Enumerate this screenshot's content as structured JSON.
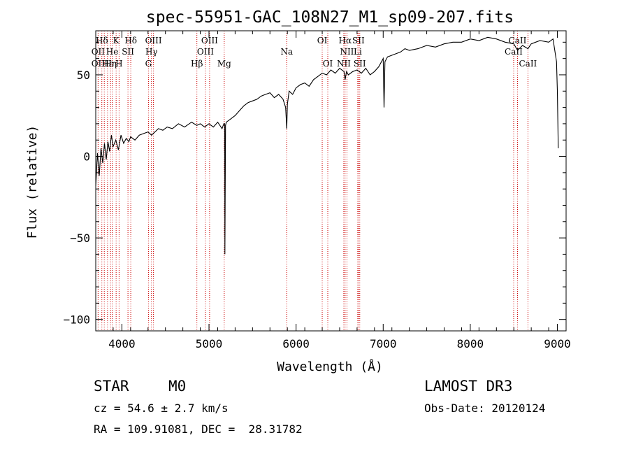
{
  "chart_data": {
    "type": "line",
    "title": "spec-55951-GAC_108N27_M1_sp09-207.fits",
    "xlabel": "Wavelength (Å)",
    "ylabel": "Flux (relative)",
    "xlim": [
      3700,
      9100
    ],
    "ylim": [
      -107,
      77
    ],
    "xticks": [
      4000,
      5000,
      6000,
      7000,
      8000,
      9000
    ],
    "yticks": [
      -100,
      -50,
      0,
      50
    ],
    "series": [
      {
        "color": "#000000",
        "x": [
          3700,
          3720,
          3740,
          3760,
          3780,
          3800,
          3820,
          3840,
          3860,
          3880,
          3900,
          3930,
          3960,
          3990,
          4020,
          4050,
          4080,
          4100,
          4150,
          4200,
          4250,
          4300,
          4340,
          4380,
          4420,
          4470,
          4520,
          4580,
          4650,
          4720,
          4800,
          4860,
          4900,
          4950,
          5000,
          5050,
          5100,
          5150,
          5170,
          5180,
          5183,
          5190,
          5200,
          5250,
          5300,
          5350,
          5400,
          5450,
          5500,
          5550,
          5600,
          5650,
          5700,
          5750,
          5800,
          5850,
          5880,
          5893,
          5900,
          5920,
          5960,
          6000,
          6050,
          6100,
          6150,
          6200,
          6250,
          6300,
          6350,
          6400,
          6450,
          6500,
          6550,
          6563,
          6580,
          6600,
          6650,
          6700,
          6750,
          6800,
          6850,
          6900,
          6950,
          7000,
          7010,
          7020,
          7050,
          7100,
          7150,
          7200,
          7250,
          7300,
          7400,
          7500,
          7600,
          7700,
          7800,
          7900,
          8000,
          8100,
          8200,
          8300,
          8400,
          8500,
          8542,
          8600,
          8662,
          8700,
          8800,
          8900,
          8950,
          8990,
          9000,
          9010
        ],
        "y": [
          -18,
          2,
          -12,
          5,
          -4,
          8,
          -2,
          9,
          3,
          13,
          6,
          10,
          4,
          13,
          8,
          11,
          9,
          12,
          10,
          13,
          14,
          15,
          13,
          15,
          17,
          16,
          18,
          17,
          20,
          18,
          21,
          19,
          20,
          18,
          20,
          18,
          21,
          17,
          20,
          20,
          -60,
          19,
          21,
          23,
          25,
          28,
          31,
          33,
          34,
          35,
          37,
          38,
          39,
          36,
          38,
          35,
          30,
          17,
          32,
          40,
          38,
          42,
          44,
          45,
          43,
          47,
          49,
          51,
          50,
          53,
          51,
          54,
          52,
          47,
          52,
          50,
          52,
          53,
          51,
          54,
          50,
          52,
          55,
          60,
          30,
          58,
          61,
          62,
          63,
          64,
          66,
          65,
          66,
          68,
          67,
          69,
          70,
          70,
          72,
          71,
          73,
          72,
          70,
          69,
          65,
          68,
          66,
          69,
          71,
          70,
          72,
          58,
          40,
          5
        ]
      }
    ],
    "line_labels": [
      {
        "label": "Hδ",
        "wave": 3770,
        "row": 0
      },
      {
        "label": "OII",
        "wave": 3727,
        "row": 1
      },
      {
        "label": "OII",
        "wave": 3727,
        "row": 2
      },
      {
        "label": "Hε",
        "wave": 3835,
        "row": 2
      },
      {
        "label": "K",
        "wave": 3934,
        "row": 0
      },
      {
        "label": "He",
        "wave": 3889,
        "row": 1
      },
      {
        "label": "Hη",
        "wave": 3870,
        "row": 2
      },
      {
        "label": "H",
        "wave": 3968,
        "row": 2
      },
      {
        "label": "SII",
        "wave": 4070,
        "row": 1
      },
      {
        "label": "Hδ",
        "wave": 4102,
        "row": 0
      },
      {
        "label": "OIII",
        "wave": 4363,
        "row": 0
      },
      {
        "label": "Hγ",
        "wave": 4340,
        "row": 1
      },
      {
        "label": "G",
        "wave": 4305,
        "row": 2
      },
      {
        "label": "Hβ",
        "wave": 4861,
        "row": 2
      },
      {
        "label": "OIII",
        "wave": 5007,
        "row": 0
      },
      {
        "label": "OIII",
        "wave": 4959,
        "row": 1
      },
      {
        "label": "Mg",
        "wave": 5175,
        "row": 2
      },
      {
        "label": "Na",
        "wave": 5893,
        "row": 1
      },
      {
        "label": "OI",
        "wave": 6300,
        "row": 0
      },
      {
        "label": "OI",
        "wave": 6364,
        "row": 2
      },
      {
        "label": "Hα",
        "wave": 6563,
        "row": 0
      },
      {
        "label": "SII",
        "wave": 6716,
        "row": 0
      },
      {
        "label": "NII",
        "wave": 6584,
        "row": 1
      },
      {
        "label": "Li",
        "wave": 6708,
        "row": 1
      },
      {
        "label": "NII",
        "wave": 6548,
        "row": 2
      },
      {
        "label": "SII",
        "wave": 6731,
        "row": 2
      },
      {
        "label": "CaII",
        "wave": 8542,
        "row": 0
      },
      {
        "label": "CaII",
        "wave": 8498,
        "row": 1
      },
      {
        "label": "CaII",
        "wave": 8662,
        "row": 2
      }
    ],
    "marker_lines": [
      3727,
      3770,
      3798,
      3835,
      3870,
      3889,
      3934,
      3968,
      4070,
      4102,
      4305,
      4340,
      4363,
      4861,
      4959,
      5007,
      5175,
      5893,
      6300,
      6364,
      6548,
      6563,
      6584,
      6708,
      6716,
      6731,
      8498,
      8542,
      8662
    ],
    "marker_color": "#cc0000",
    "grid": false
  },
  "info": {
    "object_class": "STAR",
    "subclass": "M0",
    "survey": "LAMOST DR3",
    "cz": "cz = 54.6 ± 2.7 km/s",
    "obs_date": "Obs-Date: 20120124",
    "coords": "RA = 109.91081, DEC =  28.31782"
  }
}
